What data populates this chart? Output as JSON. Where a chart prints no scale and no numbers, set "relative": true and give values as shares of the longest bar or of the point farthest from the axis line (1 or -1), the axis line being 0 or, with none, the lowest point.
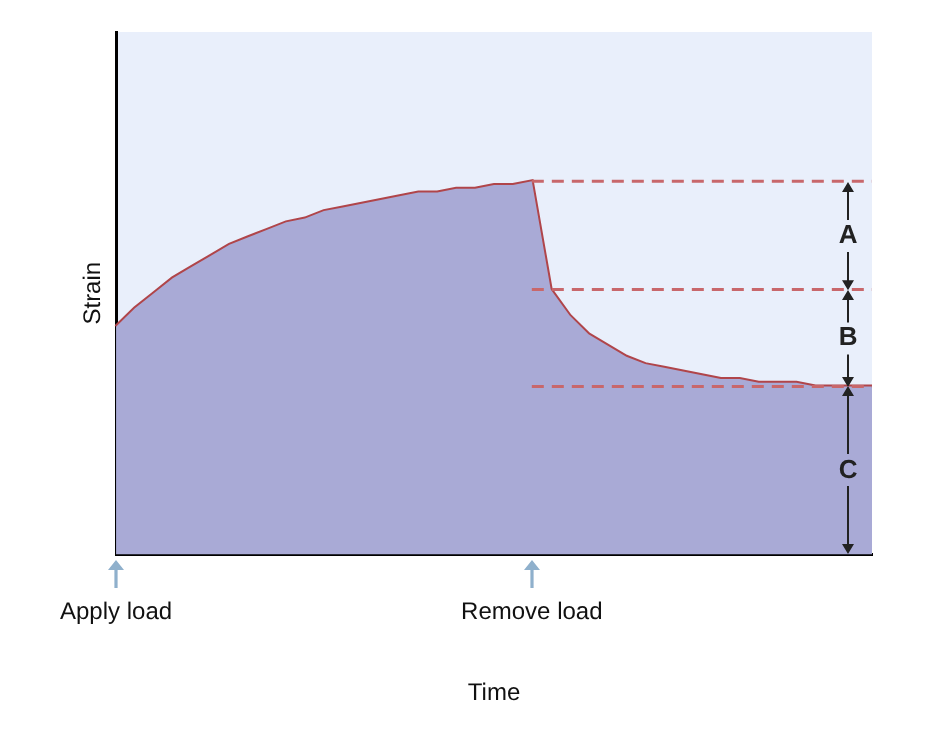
{
  "chart_data": {
    "type": "area",
    "relative": true,
    "xlabel": "Time",
    "ylabel": "Strain",
    "categories": [
      "Apply load",
      null,
      null,
      null,
      null,
      null,
      null,
      null,
      null,
      null,
      null,
      null,
      null,
      null,
      null,
      null,
      null,
      null,
      null,
      null,
      null,
      null,
      "Remove load",
      null,
      null,
      null,
      null,
      null,
      null,
      null,
      null,
      null,
      null,
      null,
      null,
      null,
      null,
      null,
      null,
      null,
      null
    ],
    "series": [
      {
        "color": "#a9aad6",
        "values": [
          0.61,
          0.66,
          0.7,
          0.74,
          0.77,
          0.8,
          0.83,
          0.85,
          0.87,
          0.89,
          0.9,
          0.92,
          0.93,
          0.94,
          0.95,
          0.96,
          0.97,
          0.97,
          0.98,
          0.98,
          0.99,
          0.99,
          1,
          0.71,
          0.64,
          0.59,
          0.56,
          0.53,
          0.51,
          0.5,
          0.49,
          0.48,
          0.47,
          0.47,
          0.46,
          0.46,
          0.46,
          0.45,
          0.45,
          0.45,
          0.45
        ]
      },
      {
        "type": "line",
        "color": "#b0454a",
        "values": [
          0.61,
          0.66,
          0.7,
          0.74,
          0.77,
          0.8,
          0.83,
          0.85,
          0.87,
          0.89,
          0.9,
          0.92,
          0.93,
          0.94,
          0.95,
          0.96,
          0.97,
          0.97,
          0.98,
          0.98,
          0.99,
          0.99,
          1,
          0.71,
          0.64,
          0.59,
          0.56,
          0.53,
          0.51,
          0.5,
          0.49,
          0.48,
          0.47,
          0.47,
          0.46,
          0.46,
          0.46,
          0.45,
          0.45,
          0.45,
          0.45
        ]
      }
    ],
    "ref_lines": [
      {
        "axis": "y",
        "value": 1,
        "color": "#c8676b",
        "line_style": "dashed"
      },
      {
        "axis": "y",
        "value": 0.71,
        "color": "#c8676b",
        "line_style": "dashed"
      },
      {
        "axis": "y",
        "value": 0.45,
        "color": "#c8676b",
        "line_style": "dashed"
      }
    ],
    "annotations": [
      "A",
      "B",
      "C"
    ],
    "grid": false,
    "legend": false
  }
}
